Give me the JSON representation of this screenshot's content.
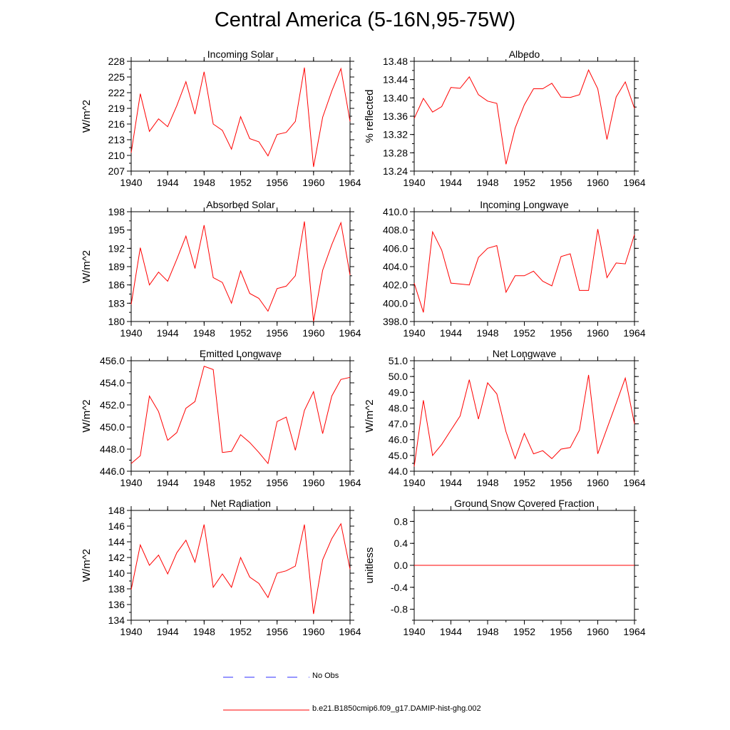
{
  "title": "Central America (5-16N,95-75W)",
  "colors": {
    "model": "#ff0000",
    "obs": "#2f2fff",
    "axis": "#000000"
  },
  "legend": [
    {
      "label": "No Obs",
      "style": "dashed",
      "color": "#2f2fff"
    },
    {
      "label": "b.e21.B1850cmip6.f09_g17.DAMIP-hist-ghg.002",
      "style": "solid",
      "color": "#ff0000"
    }
  ],
  "chart_data": [
    {
      "type": "line",
      "title": "Incoming Solar",
      "ylabel": "W/m^2",
      "xlim": [
        1940,
        1964
      ],
      "ylim": [
        207,
        228
      ],
      "xticks": [
        "1940",
        "1944",
        "1948",
        "1952",
        "1956",
        "1960",
        "1964"
      ],
      "yticks": [
        "207",
        "210",
        "213",
        "216",
        "219",
        "222",
        "225",
        "228"
      ],
      "x": [
        1940,
        1941,
        1942,
        1943,
        1944,
        1945,
        1946,
        1947,
        1948,
        1949,
        1950,
        1951,
        1952,
        1953,
        1954,
        1955,
        1956,
        1957,
        1958,
        1959,
        1960,
        1961,
        1962,
        1963,
        1964
      ],
      "series": [
        {
          "name": "b.e21.B1850cmip6.f09_g17.DAMIP-hist-ghg.002",
          "values": [
            210.5,
            221.8,
            214.6,
            217.0,
            215.5,
            219.5,
            224.1,
            217.9,
            226.0,
            216.0,
            214.8,
            211.2,
            217.4,
            213.2,
            212.6,
            209.9,
            214.0,
            214.4,
            216.5,
            226.8,
            207.8,
            217.3,
            222.3,
            226.6,
            216.5
          ]
        }
      ]
    },
    {
      "type": "line",
      "title": "Albedo",
      "ylabel": "% reflected",
      "xlim": [
        1940,
        1964
      ],
      "ylim": [
        13.24,
        13.48
      ],
      "xticks": [
        "1940",
        "1944",
        "1948",
        "1952",
        "1956",
        "1960",
        "1964"
      ],
      "yticks": [
        "13.24",
        "13.28",
        "13.32",
        "13.36",
        "13.40",
        "13.44",
        "13.48"
      ],
      "x": [
        1940,
        1941,
        1942,
        1943,
        1944,
        1945,
        1946,
        1947,
        1948,
        1949,
        1950,
        1951,
        1952,
        1953,
        1954,
        1955,
        1956,
        1957,
        1958,
        1959,
        1960,
        1961,
        1962,
        1963,
        1964
      ],
      "series": [
        {
          "name": "b.e21.B1850cmip6.f09_g17.DAMIP-hist-ghg.002",
          "values": [
            13.355,
            13.399,
            13.369,
            13.381,
            13.423,
            13.421,
            13.446,
            13.407,
            13.393,
            13.388,
            13.255,
            13.334,
            13.385,
            13.42,
            13.42,
            13.432,
            13.402,
            13.401,
            13.407,
            13.461,
            13.42,
            13.309,
            13.402,
            13.435,
            13.377
          ]
        }
      ]
    },
    {
      "type": "line",
      "title": "Absorbed Solar",
      "ylabel": "W/m^2",
      "xlim": [
        1940,
        1964
      ],
      "ylim": [
        180,
        198
      ],
      "xticks": [
        "1940",
        "1944",
        "1948",
        "1952",
        "1956",
        "1960",
        "1964"
      ],
      "yticks": [
        "180",
        "183",
        "186",
        "189",
        "192",
        "195",
        "198"
      ],
      "x": [
        1940,
        1941,
        1942,
        1943,
        1944,
        1945,
        1946,
        1947,
        1948,
        1949,
        1950,
        1951,
        1952,
        1953,
        1954,
        1955,
        1956,
        1957,
        1958,
        1959,
        1960,
        1961,
        1962,
        1963,
        1964
      ],
      "series": [
        {
          "name": "b.e21.B1850cmip6.f09_g17.DAMIP-hist-ghg.002",
          "values": [
            182.8,
            192.1,
            186.0,
            188.1,
            186.6,
            190.2,
            194.0,
            188.7,
            195.8,
            187.2,
            186.4,
            183.0,
            188.3,
            184.6,
            183.8,
            181.7,
            185.4,
            185.8,
            187.5,
            196.4,
            180.0,
            188.4,
            192.6,
            196.2,
            187.6
          ]
        }
      ]
    },
    {
      "type": "line",
      "title": "Incoming Longwave",
      "ylabel": "",
      "xlim": [
        1940,
        1964
      ],
      "ylim": [
        398.0,
        410.0
      ],
      "xticks": [
        "1940",
        "1944",
        "1948",
        "1952",
        "1956",
        "1960",
        "1964"
      ],
      "yticks": [
        "398.0",
        "400.0",
        "402.0",
        "404.0",
        "406.0",
        "408.0",
        "410.0"
      ],
      "x": [
        1940,
        1941,
        1942,
        1943,
        1944,
        1945,
        1946,
        1947,
        1948,
        1949,
        1950,
        1951,
        1952,
        1953,
        1954,
        1955,
        1956,
        1957,
        1958,
        1959,
        1960,
        1961,
        1962,
        1963,
        1964
      ],
      "series": [
        {
          "name": "b.e21.B1850cmip6.f09_g17.DAMIP-hist-ghg.002",
          "values": [
            402.2,
            399.0,
            407.8,
            405.8,
            402.2,
            402.1,
            402.0,
            405.0,
            406.0,
            406.3,
            401.2,
            403.0,
            403.0,
            403.5,
            402.4,
            401.9,
            405.1,
            405.4,
            401.4,
            401.4,
            408.1,
            402.8,
            404.4,
            404.3,
            407.5
          ]
        }
      ]
    },
    {
      "type": "line",
      "title": "Emitted Longwave",
      "ylabel": "W/m^2",
      "xlim": [
        1940,
        1964
      ],
      "ylim": [
        446.0,
        456.0
      ],
      "xticks": [
        "1940",
        "1944",
        "1948",
        "1952",
        "1956",
        "1960",
        "1964"
      ],
      "yticks": [
        "446.0",
        "448.0",
        "450.0",
        "452.0",
        "454.0",
        "456.0"
      ],
      "x": [
        1940,
        1941,
        1942,
        1943,
        1944,
        1945,
        1946,
        1947,
        1948,
        1949,
        1950,
        1951,
        1952,
        1953,
        1954,
        1955,
        1956,
        1957,
        1958,
        1959,
        1960,
        1961,
        1962,
        1963,
        1964
      ],
      "series": [
        {
          "name": "b.e21.B1850cmip6.f09_g17.DAMIP-hist-ghg.002",
          "values": [
            446.7,
            447.4,
            452.8,
            451.4,
            448.8,
            449.5,
            451.7,
            452.3,
            455.5,
            455.2,
            447.7,
            447.8,
            449.3,
            448.6,
            447.7,
            446.7,
            450.5,
            450.9,
            447.9,
            451.5,
            453.2,
            449.4,
            452.8,
            454.3,
            454.5
          ]
        }
      ]
    },
    {
      "type": "line",
      "title": "Net Longwave",
      "ylabel": "W/m^2",
      "xlim": [
        1940,
        1964
      ],
      "ylim": [
        44.0,
        51.0
      ],
      "xticks": [
        "1940",
        "1944",
        "1948",
        "1952",
        "1956",
        "1960",
        "1964"
      ],
      "yticks": [
        "44.0",
        "45.0",
        "46.0",
        "47.0",
        "48.0",
        "49.0",
        "50.0",
        "51.0"
      ],
      "x": [
        1940,
        1941,
        1942,
        1943,
        1944,
        1945,
        1946,
        1947,
        1948,
        1949,
        1950,
        1951,
        1952,
        1953,
        1954,
        1955,
        1956,
        1957,
        1958,
        1959,
        1960,
        1961,
        1962,
        1963,
        1964
      ],
      "series": [
        {
          "name": "b.e21.B1850cmip6.f09_g17.DAMIP-hist-ghg.002",
          "values": [
            44.3,
            48.5,
            45.0,
            45.7,
            46.6,
            47.5,
            49.8,
            47.3,
            49.6,
            48.9,
            46.5,
            44.8,
            46.4,
            45.1,
            45.3,
            44.8,
            45.4,
            45.5,
            46.6,
            50.1,
            45.1,
            46.7,
            48.3,
            49.9,
            47.0
          ]
        }
      ]
    },
    {
      "type": "line",
      "title": "Net Radiation",
      "ylabel": "W/m^2",
      "xlim": [
        1940,
        1964
      ],
      "ylim": [
        134,
        148
      ],
      "xticks": [
        "1940",
        "1944",
        "1948",
        "1952",
        "1956",
        "1960",
        "1964"
      ],
      "yticks": [
        "134",
        "136",
        "138",
        "140",
        "142",
        "144",
        "146",
        "148"
      ],
      "x": [
        1940,
        1941,
        1942,
        1943,
        1944,
        1945,
        1946,
        1947,
        1948,
        1949,
        1950,
        1951,
        1952,
        1953,
        1954,
        1955,
        1956,
        1957,
        1958,
        1959,
        1960,
        1961,
        1962,
        1963,
        1964
      ],
      "series": [
        {
          "name": "b.e21.B1850cmip6.f09_g17.DAMIP-hist-ghg.002",
          "values": [
            137.9,
            143.6,
            141.0,
            142.3,
            139.9,
            142.6,
            144.2,
            141.4,
            146.2,
            138.2,
            139.9,
            138.2,
            142.0,
            139.5,
            138.7,
            136.9,
            140.0,
            140.3,
            140.9,
            146.2,
            134.8,
            141.7,
            144.4,
            146.3,
            140.5
          ]
        }
      ]
    },
    {
      "type": "line",
      "title": "Ground Snow Covered Fraction",
      "ylabel": "unitless",
      "xlim": [
        1940,
        1964
      ],
      "ylim": [
        -1.0,
        1.0
      ],
      "xticks": [
        "1940",
        "1944",
        "1948",
        "1952",
        "1956",
        "1960",
        "1964"
      ],
      "yticks": [
        "-0.8",
        "-0.4",
        "0.0",
        "0.4",
        "0.8"
      ],
      "ytick_values": [
        -0.8,
        -0.4,
        0.0,
        0.4,
        0.8
      ],
      "x": [
        1940,
        1941,
        1942,
        1943,
        1944,
        1945,
        1946,
        1947,
        1948,
        1949,
        1950,
        1951,
        1952,
        1953,
        1954,
        1955,
        1956,
        1957,
        1958,
        1959,
        1960,
        1961,
        1962,
        1963,
        1964
      ],
      "series": [
        {
          "name": "b.e21.B1850cmip6.f09_g17.DAMIP-hist-ghg.002",
          "values": [
            0,
            0,
            0,
            0,
            0,
            0,
            0,
            0,
            0,
            0,
            0,
            0,
            0,
            0,
            0,
            0,
            0,
            0,
            0,
            0,
            0,
            0,
            0,
            0,
            0
          ]
        }
      ]
    }
  ]
}
